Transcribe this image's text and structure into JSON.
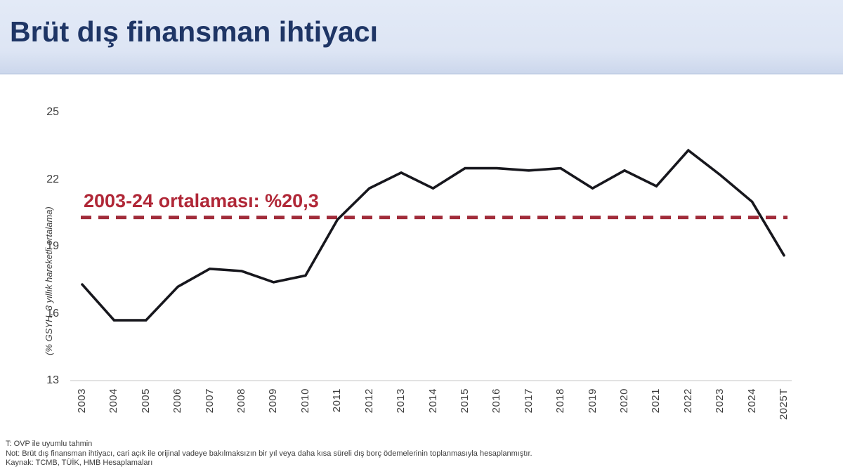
{
  "slide": {
    "title": "Brüt dış finansman ihtiyacı"
  },
  "colors": {
    "title_navy": "#1e3565",
    "header_background": "#dde5f4",
    "accent_red": "#b02737",
    "line_black": "#17171d",
    "axis_gray": "#d9d9d9"
  },
  "chart_data": {
    "type": "line",
    "ylabel": "(% GSYH, 3 yıllık hareketli ortalama)",
    "xlabel": "",
    "categories": [
      "2003",
      "2004",
      "2005",
      "2006",
      "2007",
      "2008",
      "2009",
      "2010",
      "2011",
      "2012",
      "2013",
      "2014",
      "2015",
      "2016",
      "2017",
      "2018",
      "2019",
      "2020",
      "2021",
      "2022",
      "2023",
      "2024",
      "2025T"
    ],
    "values": [
      17.3,
      15.7,
      15.7,
      17.2,
      18.0,
      17.9,
      17.4,
      17.7,
      20.2,
      21.6,
      22.3,
      21.6,
      22.5,
      22.5,
      22.4,
      22.5,
      21.6,
      22.4,
      21.7,
      23.3,
      22.2,
      21.0,
      18.6
    ],
    "ylim": [
      13,
      25
    ],
    "yticks": [
      25,
      22,
      19,
      16,
      13
    ],
    "grid": false,
    "legend": "none",
    "line_color": "#17171d",
    "average_line": {
      "value": 20.3,
      "label": "2003-24 ortalaması: %20,3",
      "color": "#a12c3a",
      "style": "dashed"
    }
  },
  "footnotes": [
    "T: OVP ile uyumlu tahmin",
    "Not:  Brüt dış finansman ihtiyacı, cari açık ile orijinal vadeye bakılmaksızın bir yıl veya daha kısa süreli dış borç ödemelerinin toplanmasıyla hesaplanmıştır.",
    "Kaynak: TCMB,  TÜİK, HMB Hesaplamaları"
  ]
}
